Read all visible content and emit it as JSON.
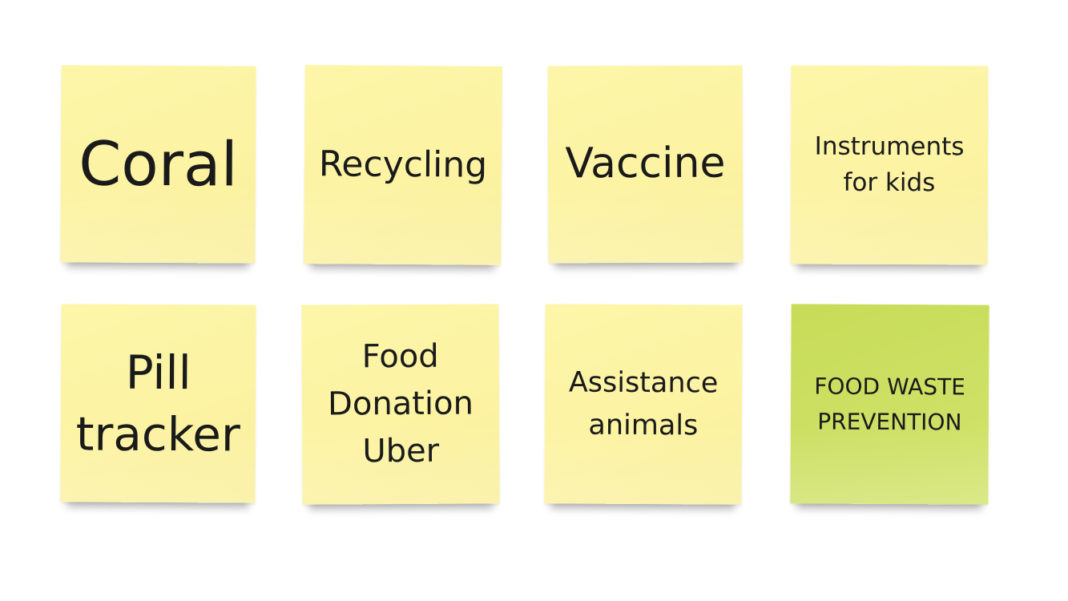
{
  "board": {
    "notes": [
      {
        "text": "Coral",
        "color": "#fcf3a3"
      },
      {
        "text": "Recycling",
        "color": "#fcf3a3"
      },
      {
        "text": "Vaccine",
        "color": "#fcf3a3"
      },
      {
        "text": "Instruments\nfor kids",
        "color": "#fcf3a3"
      },
      {
        "text": "Pill\ntracker",
        "color": "#fcf3a3"
      },
      {
        "text": "Food\nDonation\nUber",
        "color": "#fcf3a3"
      },
      {
        "text": "Assistance\nanimals",
        "color": "#fcf3a3"
      },
      {
        "text": "FOOD WASTE\nPREVENTION",
        "color": "#cde064"
      }
    ]
  }
}
